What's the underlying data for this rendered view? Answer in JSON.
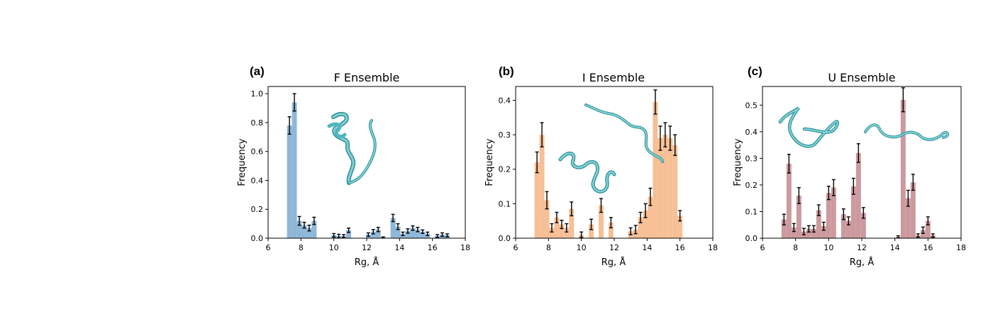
{
  "colors": {
    "f_color": "#8fb7d8",
    "i_color": "#f7bf95",
    "u_color": "#cc9a9e",
    "protein": "#4fb6bd"
  },
  "chart_data": [
    {
      "type": "bar",
      "panel_label": "(a)",
      "title": "F Ensemble",
      "xlabel": "Rg, Å",
      "ylabel": "Frequency",
      "xlim": [
        6,
        18
      ],
      "ylim": [
        0,
        1.05
      ],
      "xticks": [
        6,
        8,
        10,
        12,
        14,
        16,
        18
      ],
      "yticks": [
        0.0,
        0.2,
        0.4,
        0.6,
        0.8,
        1.0
      ],
      "ytick_labels": [
        "0.0",
        "0.2",
        "0.4",
        "0.6",
        "0.8",
        "1.0"
      ],
      "bin_width": 0.3,
      "x": [
        7.3,
        7.6,
        7.9,
        8.2,
        8.5,
        8.8,
        9.1,
        9.4,
        9.7,
        10.0,
        10.3,
        10.6,
        10.9,
        11.2,
        11.5,
        11.8,
        12.1,
        12.4,
        12.7,
        13.0,
        13.3,
        13.6,
        13.9,
        14.2,
        14.5,
        14.8,
        15.1,
        15.4,
        15.7,
        16.0,
        16.3,
        16.6,
        16.9
      ],
      "values": [
        0.78,
        0.94,
        0.12,
        0.09,
        0.07,
        0.12,
        0.0,
        0.0,
        0.0,
        0.02,
        0.015,
        0.015,
        0.055,
        0.0,
        0.0,
        0.0,
        0.025,
        0.045,
        0.06,
        0.005,
        0.0,
        0.14,
        0.08,
        0.03,
        0.05,
        0.07,
        0.06,
        0.045,
        0.03,
        0.0,
        0.015,
        0.025,
        0.02
      ],
      "errors": [
        0.06,
        0.06,
        0.03,
        0.02,
        0.02,
        0.025,
        0.0,
        0.0,
        0.0,
        0.012,
        0.012,
        0.01,
        0.015,
        0.0,
        0.0,
        0.0,
        0.012,
        0.015,
        0.015,
        0.004,
        0.0,
        0.025,
        0.02,
        0.012,
        0.015,
        0.015,
        0.015,
        0.012,
        0.012,
        0.0,
        0.01,
        0.012,
        0.01
      ]
    },
    {
      "type": "bar",
      "panel_label": "(b)",
      "title": "I Ensemble",
      "xlabel": "Rg, Å",
      "ylabel": "Frequency",
      "xlim": [
        6,
        18
      ],
      "ylim": [
        0,
        0.44
      ],
      "xticks": [
        6,
        8,
        10,
        12,
        14,
        16,
        18
      ],
      "yticks": [
        0.0,
        0.1,
        0.2,
        0.3,
        0.4
      ],
      "ytick_labels": [
        "0.0",
        "0.1",
        "0.2",
        "0.3",
        "0.4"
      ],
      "bin_width": 0.3,
      "x": [
        7.3,
        7.6,
        7.9,
        8.2,
        8.5,
        8.8,
        9.1,
        9.4,
        9.7,
        10.0,
        10.3,
        10.6,
        10.9,
        11.2,
        11.5,
        11.8,
        12.1,
        12.4,
        12.7,
        13.0,
        13.3,
        13.6,
        13.9,
        14.2,
        14.5,
        14.8,
        15.1,
        15.4,
        15.7,
        16.0,
        16.3,
        16.6,
        16.9
      ],
      "values": [
        0.22,
        0.3,
        0.11,
        0.03,
        0.06,
        0.04,
        0.03,
        0.085,
        0.0,
        0.01,
        0.0,
        0.04,
        0.0,
        0.095,
        0.0,
        0.045,
        0.0,
        0.0,
        0.0,
        0.02,
        0.025,
        0.06,
        0.08,
        0.12,
        0.395,
        0.29,
        0.3,
        0.29,
        0.27,
        0.065,
        0.0,
        0.0,
        0.0
      ],
      "errors": [
        0.03,
        0.035,
        0.025,
        0.012,
        0.015,
        0.012,
        0.012,
        0.02,
        0.0,
        0.008,
        0.0,
        0.015,
        0.0,
        0.02,
        0.0,
        0.015,
        0.0,
        0.0,
        0.0,
        0.01,
        0.012,
        0.015,
        0.02,
        0.025,
        0.035,
        0.035,
        0.035,
        0.035,
        0.03,
        0.015,
        0.0,
        0.0,
        0.0
      ]
    },
    {
      "type": "bar",
      "panel_label": "(c)",
      "title": "U Ensemble",
      "xlabel": "Rg, Å",
      "ylabel": "Frequency",
      "xlim": [
        6,
        18
      ],
      "ylim": [
        0,
        0.57
      ],
      "xticks": [
        6,
        8,
        10,
        12,
        14,
        16,
        18
      ],
      "yticks": [
        0.0,
        0.1,
        0.2,
        0.3,
        0.4,
        0.5
      ],
      "ytick_labels": [
        "0.0",
        "0.1",
        "0.2",
        "0.3",
        "0.4",
        "0.5"
      ],
      "bin_width": 0.3,
      "x": [
        7.3,
        7.6,
        7.9,
        8.2,
        8.5,
        8.8,
        9.1,
        9.4,
        9.7,
        10.0,
        10.3,
        10.6,
        10.9,
        11.2,
        11.5,
        11.8,
        12.1,
        12.4,
        12.7,
        13.0,
        13.3,
        13.6,
        13.9,
        14.2,
        14.5,
        14.8,
        15.1,
        15.4,
        15.7,
        16.0,
        16.3,
        16.6,
        16.9
      ],
      "values": [
        0.07,
        0.28,
        0.04,
        0.16,
        0.025,
        0.035,
        0.035,
        0.105,
        0.045,
        0.17,
        0.19,
        0.0,
        0.09,
        0.065,
        0.195,
        0.32,
        0.095,
        0.0,
        0.0,
        0.0,
        0.0,
        0.0,
        0.0,
        0.005,
        0.52,
        0.15,
        0.21,
        0.01,
        0.03,
        0.065,
        0.01,
        0.0,
        0.0
      ],
      "errors": [
        0.02,
        0.035,
        0.015,
        0.03,
        0.012,
        0.012,
        0.012,
        0.02,
        0.015,
        0.025,
        0.03,
        0.0,
        0.02,
        0.015,
        0.03,
        0.035,
        0.02,
        0.0,
        0.0,
        0.0,
        0.0,
        0.0,
        0.0,
        0.004,
        0.045,
        0.03,
        0.03,
        0.006,
        0.012,
        0.015,
        0.006,
        0.0,
        0.0
      ]
    }
  ]
}
